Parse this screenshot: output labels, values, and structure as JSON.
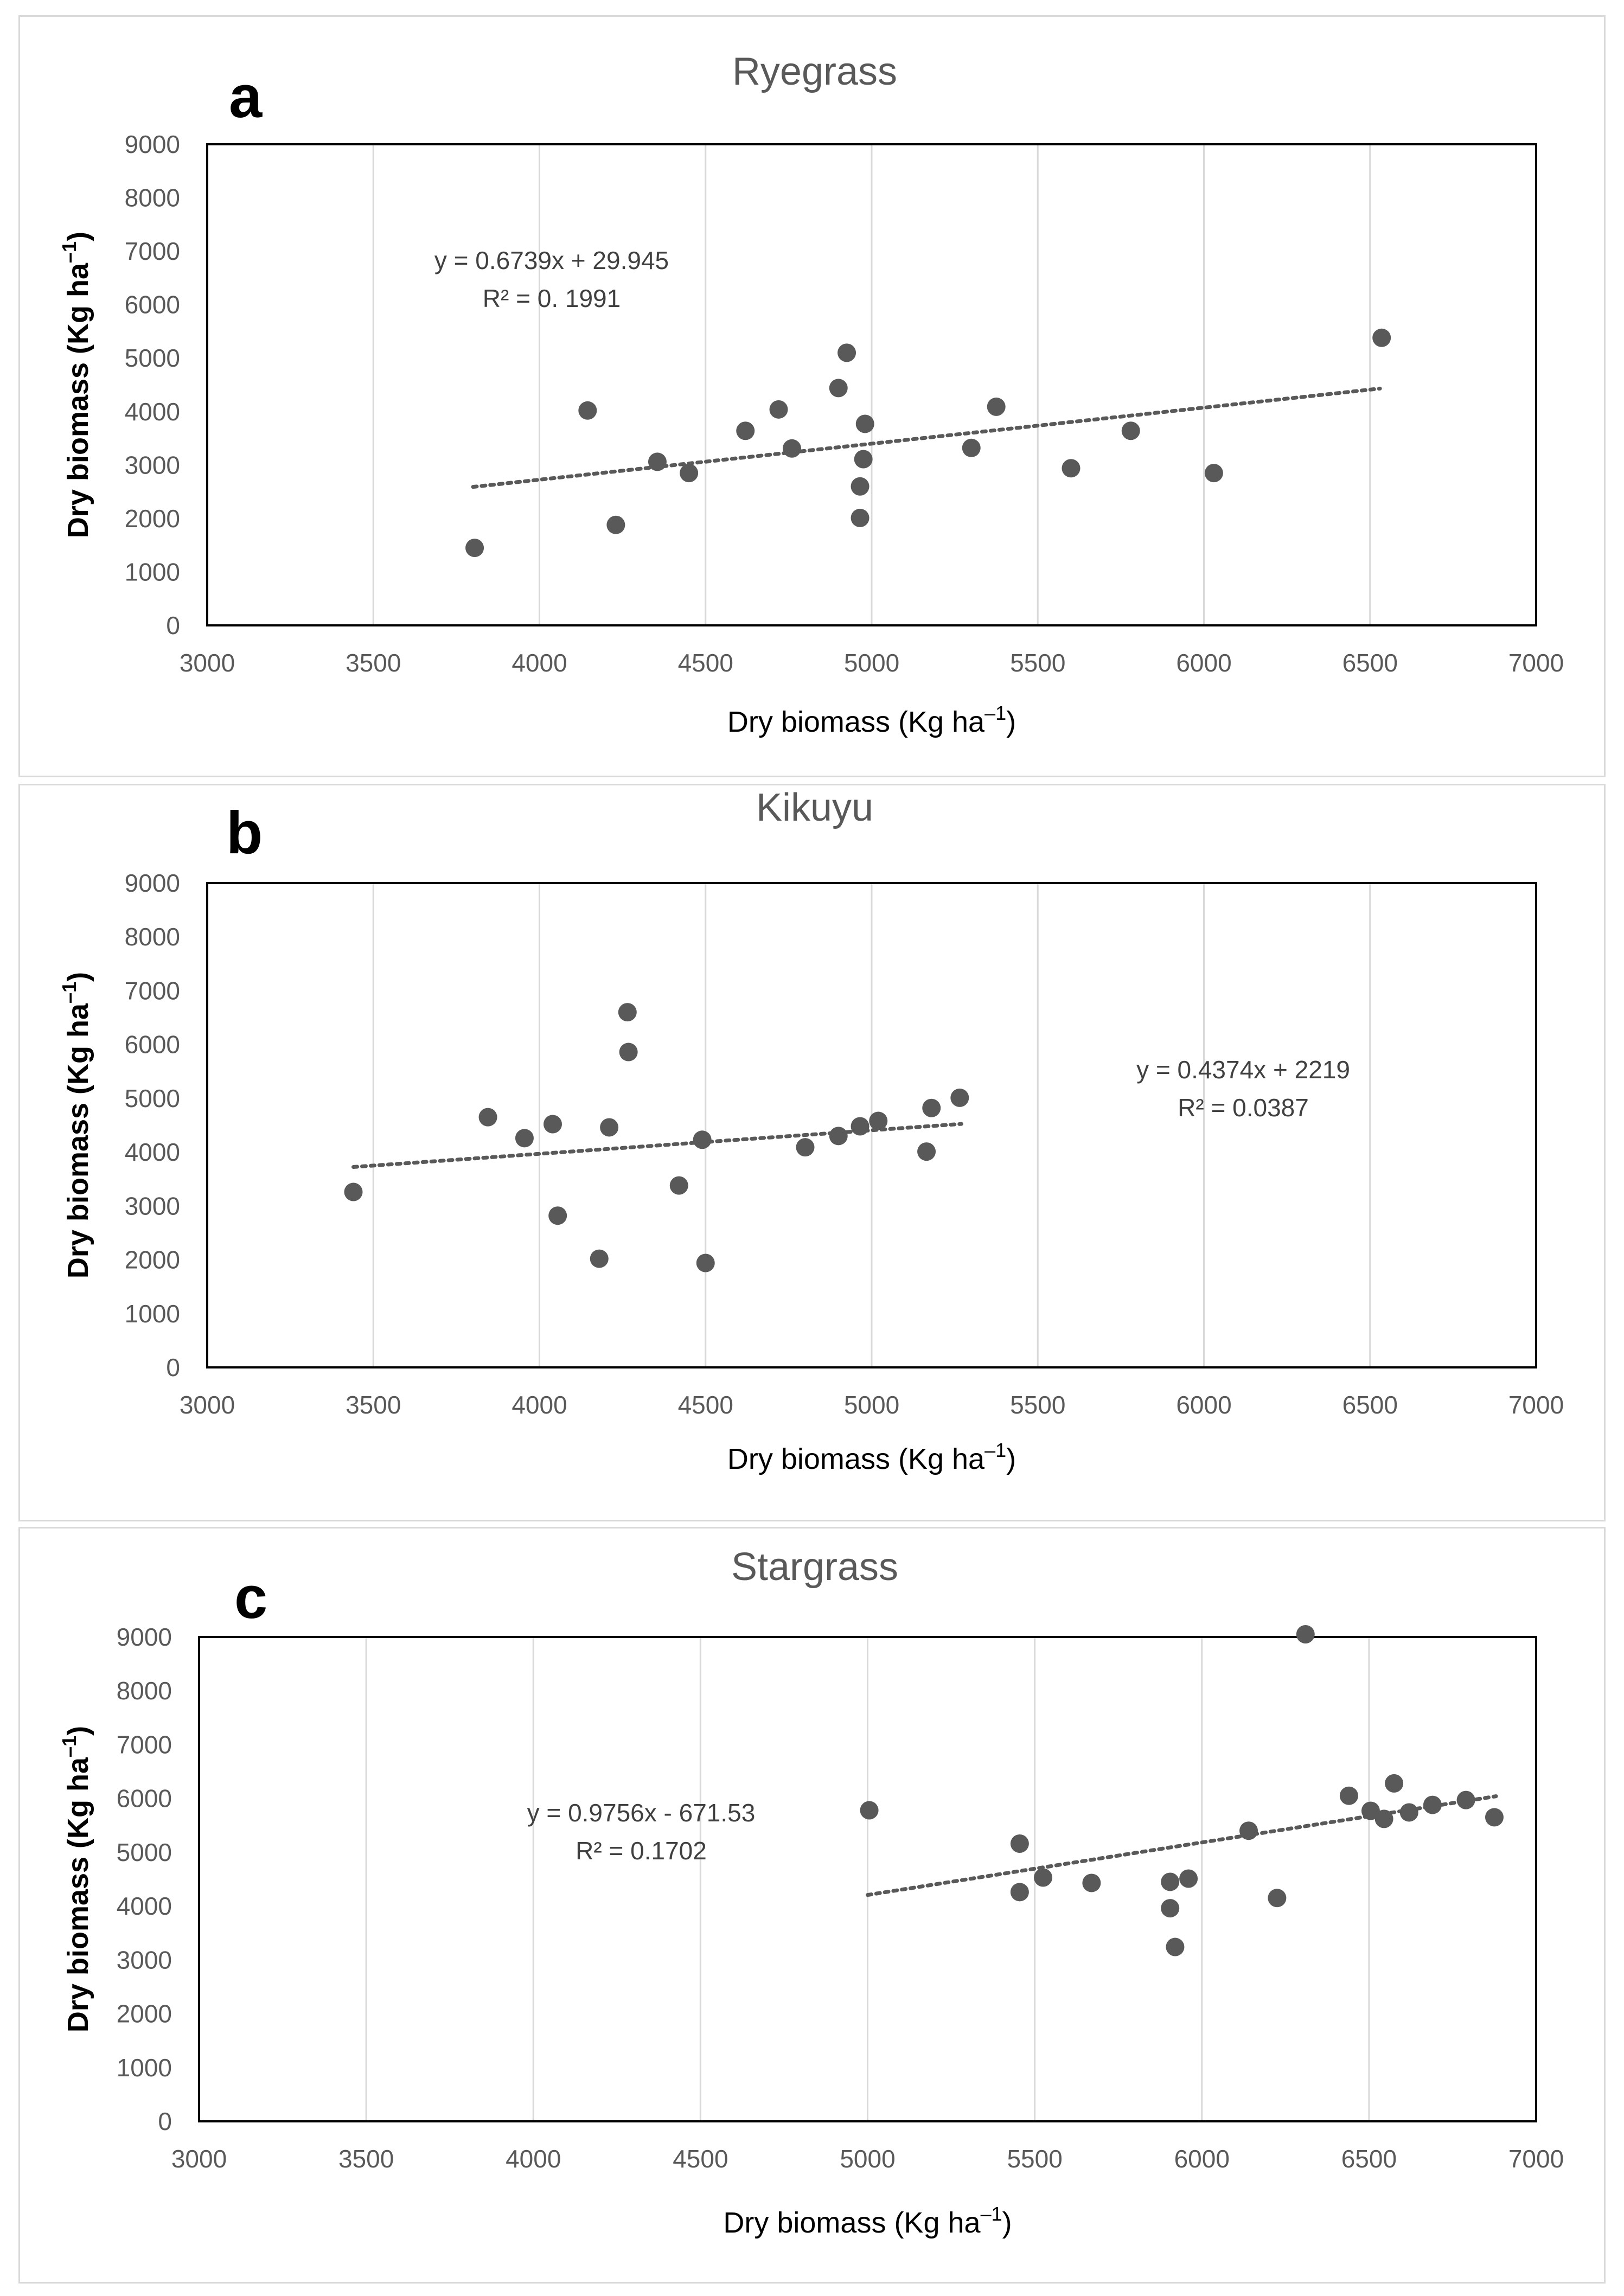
{
  "chart_data": [
    {
      "type": "scatter",
      "panel_label": "a",
      "title": "Ryegrass",
      "xlabel": "Dry biomass (Kg ha",
      "xlabel_sup": "–1",
      "xlabel_end": ")",
      "ylabel": "Dry biomass (Kg ha",
      "ylabel_sup": "–1",
      "ylabel_end": ")",
      "xlim": [
        3000,
        7000
      ],
      "ylim": [
        0,
        9000
      ],
      "xticks": [
        "3000",
        "3500",
        "4000",
        "4500",
        "5000",
        "5500",
        "6000",
        "6500",
        "7000"
      ],
      "yticks": [
        "0",
        "1000",
        "2000",
        "3000",
        "4000",
        "5000",
        "6000",
        "7000",
        "8000",
        "9000"
      ],
      "grid": true,
      "marker_color": "#595959",
      "trendline": {
        "slope": 0.6739,
        "intercept": 29.945,
        "x_range": [
          3800,
          6530
        ],
        "equation": "y = 0.6739x + 29.945",
        "r2": "R² = 0. 1991"
      },
      "points": [
        {
          "x": 3805,
          "y": 1450
        },
        {
          "x": 4145,
          "y": 4020
        },
        {
          "x": 4230,
          "y": 1880
        },
        {
          "x": 4355,
          "y": 3060
        },
        {
          "x": 4450,
          "y": 2850
        },
        {
          "x": 4620,
          "y": 3640
        },
        {
          "x": 4720,
          "y": 4040
        },
        {
          "x": 4760,
          "y": 3310
        },
        {
          "x": 4900,
          "y": 4440
        },
        {
          "x": 4925,
          "y": 5100
        },
        {
          "x": 4965,
          "y": 2600
        },
        {
          "x": 4965,
          "y": 2010
        },
        {
          "x": 4975,
          "y": 3110
        },
        {
          "x": 4980,
          "y": 3770
        },
        {
          "x": 5300,
          "y": 3320
        },
        {
          "x": 5375,
          "y": 4090
        },
        {
          "x": 5600,
          "y": 2940
        },
        {
          "x": 5780,
          "y": 3640
        },
        {
          "x": 6030,
          "y": 2850
        },
        {
          "x": 6535,
          "y": 5380
        }
      ]
    },
    {
      "type": "scatter",
      "panel_label": "b",
      "title": "Kikuyu",
      "xlabel": "Dry biomass (Kg ha",
      "xlabel_sup": "–1",
      "xlabel_end": ")",
      "ylabel": "Dry biomass (Kg ha",
      "ylabel_sup": "–1",
      "ylabel_end": ")",
      "xlim": [
        3000,
        7000
      ],
      "ylim": [
        0,
        9000
      ],
      "xticks": [
        "3000",
        "3500",
        "4000",
        "4500",
        "5000",
        "5500",
        "6000",
        "6500",
        "7000"
      ],
      "yticks": [
        "0",
        "1000",
        "2000",
        "3000",
        "4000",
        "5000",
        "6000",
        "7000",
        "8000",
        "9000"
      ],
      "grid": true,
      "marker_color": "#595959",
      "trendline": {
        "slope": 0.4374,
        "intercept": 2219,
        "x_range": [
          3440,
          5270
        ],
        "equation": "y = 0.4374x + 2219",
        "r2": "R² = 0.0387"
      },
      "points": [
        {
          "x": 3440,
          "y": 3260
        },
        {
          "x": 3845,
          "y": 4650
        },
        {
          "x": 3955,
          "y": 4260
        },
        {
          "x": 4040,
          "y": 4520
        },
        {
          "x": 4055,
          "y": 2820
        },
        {
          "x": 4180,
          "y": 2020
        },
        {
          "x": 4210,
          "y": 4460
        },
        {
          "x": 4265,
          "y": 6600
        },
        {
          "x": 4268,
          "y": 5860
        },
        {
          "x": 4420,
          "y": 3380
        },
        {
          "x": 4490,
          "y": 4230
        },
        {
          "x": 4500,
          "y": 1940
        },
        {
          "x": 4800,
          "y": 4090
        },
        {
          "x": 4900,
          "y": 4300
        },
        {
          "x": 4965,
          "y": 4480
        },
        {
          "x": 5020,
          "y": 4580
        },
        {
          "x": 5165,
          "y": 4010
        },
        {
          "x": 5180,
          "y": 4820
        },
        {
          "x": 5265,
          "y": 5010
        }
      ]
    },
    {
      "type": "scatter",
      "panel_label": "c",
      "title": "Stargrass",
      "xlabel": "Dry biomass (Kg ha",
      "xlabel_sup": "–1",
      "xlabel_end": ")",
      "ylabel": "Dry biomass (Kg ha",
      "ylabel_sup": "–1",
      "ylabel_end": ")",
      "xlim": [
        3000,
        7000
      ],
      "ylim": [
        0,
        9000
      ],
      "xticks": [
        "3000",
        "3500",
        "4000",
        "4500",
        "5000",
        "5500",
        "6000",
        "6500",
        "7000"
      ],
      "yticks": [
        "0",
        "1000",
        "2000",
        "3000",
        "4000",
        "5000",
        "6000",
        "7000",
        "8000",
        "9000"
      ],
      "grid": true,
      "marker_color": "#595959",
      "trendline": {
        "slope": 0.9756,
        "intercept": -671.53,
        "x_range": [
          5000,
          6880
        ],
        "equation": "y = 0.9756x - 671.53",
        "r2": "R² = 0.1702"
      },
      "points": [
        {
          "x": 5005,
          "y": 5780
        },
        {
          "x": 5455,
          "y": 5160
        },
        {
          "x": 5455,
          "y": 4260
        },
        {
          "x": 5525,
          "y": 4530
        },
        {
          "x": 5670,
          "y": 4430
        },
        {
          "x": 5905,
          "y": 4450
        },
        {
          "x": 5905,
          "y": 3960
        },
        {
          "x": 5920,
          "y": 3240
        },
        {
          "x": 5960,
          "y": 4510
        },
        {
          "x": 6140,
          "y": 5400
        },
        {
          "x": 6225,
          "y": 4150
        },
        {
          "x": 6310,
          "y": 9050
        },
        {
          "x": 6440,
          "y": 6050
        },
        {
          "x": 6505,
          "y": 5770
        },
        {
          "x": 6545,
          "y": 5620
        },
        {
          "x": 6575,
          "y": 6280
        },
        {
          "x": 6620,
          "y": 5740
        },
        {
          "x": 6690,
          "y": 5880
        },
        {
          "x": 6790,
          "y": 5970
        },
        {
          "x": 6875,
          "y": 5650
        }
      ]
    }
  ]
}
